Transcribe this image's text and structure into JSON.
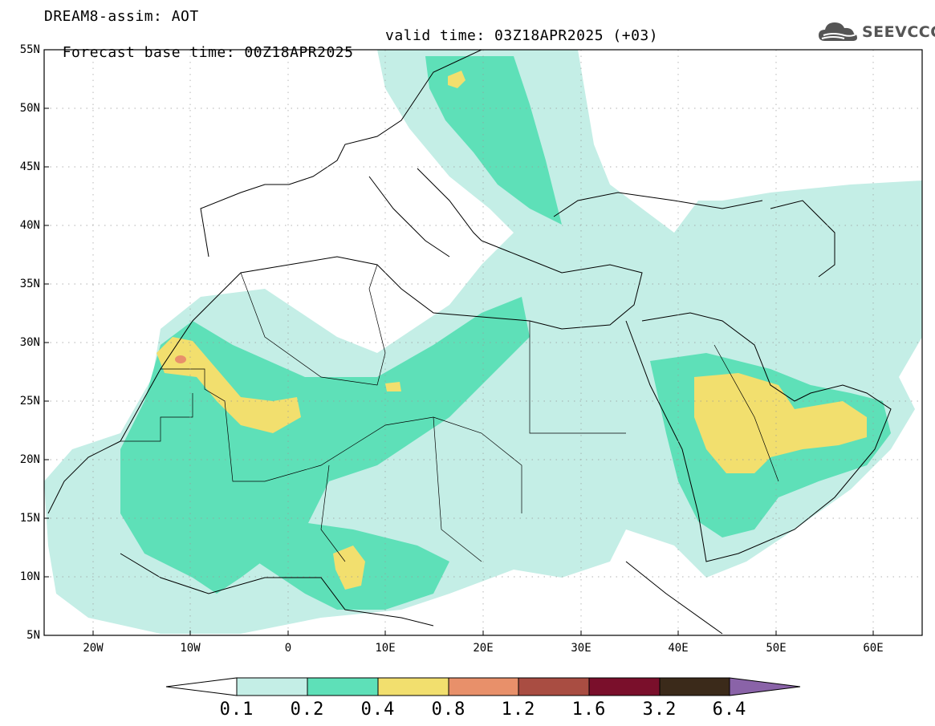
{
  "header": {
    "model_line": "DREAM8-assim: AOT",
    "base_time": "Forecast base time: 00Z18APR2025",
    "valid_time": "valid time: 03Z18APR2025 (+03)"
  },
  "logo": {
    "text": "SEEVCCC",
    "icon": "cloud-icon"
  },
  "map": {
    "lat_labels": [
      "55N",
      "50N",
      "45N",
      "40N",
      "35N",
      "30N",
      "25N",
      "20N",
      "15N",
      "10N",
      "5N"
    ],
    "lon_labels": [
      "20W",
      "10W",
      "0",
      "10E",
      "20E",
      "30E",
      "40E",
      "50E",
      "60E"
    ],
    "grid": true,
    "field": "AOT"
  },
  "colorbar": {
    "labels": [
      "0.1",
      "0.2",
      "0.4",
      "0.8",
      "1.2",
      "1.6",
      "3.2",
      "6.4"
    ],
    "colors": [
      "#ffffff",
      "#c4eee6",
      "#5ee0b8",
      "#f2df6e",
      "#e8906a",
      "#a94d42",
      "#7a0f2b",
      "#3b2a1a",
      "#8a63a8"
    ]
  }
}
